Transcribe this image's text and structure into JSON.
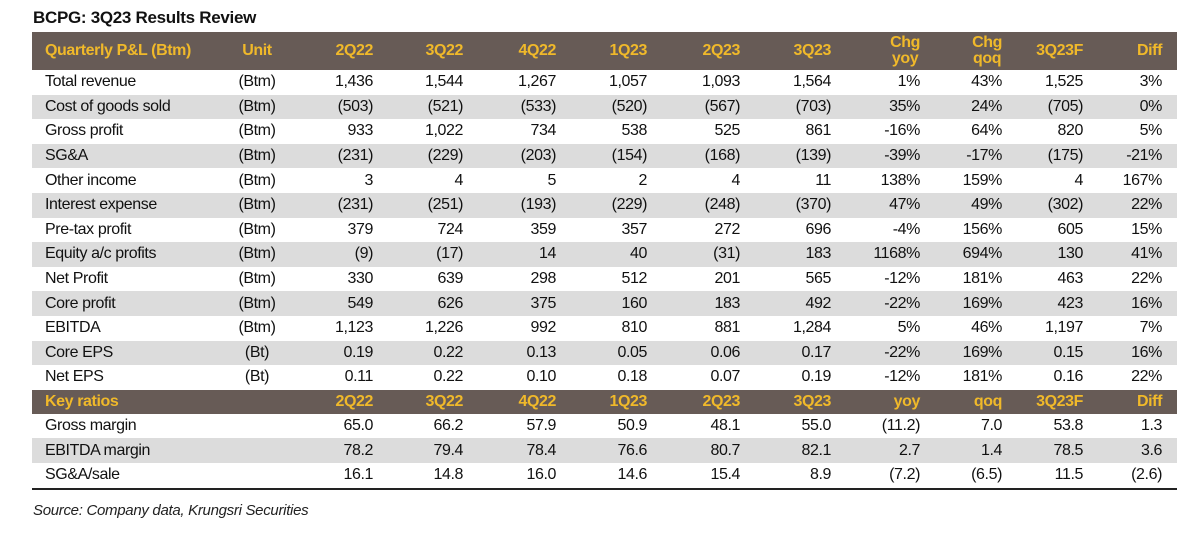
{
  "title": "BCPG: 3Q23 Results Review",
  "colors": {
    "header_bg": "#675b56",
    "header_text": "#f0b92a",
    "stripe": "#dcdcdc"
  },
  "pl_header": {
    "label": "Quarterly P&L (Btm)",
    "unit": "Unit",
    "columns": [
      "2Q22",
      "3Q22",
      "4Q22",
      "1Q23",
      "2Q23",
      "3Q23"
    ],
    "chg_yoy": [
      "Chg",
      "yoy"
    ],
    "chg_qoq": [
      "Chg",
      "qoq"
    ],
    "forecast": "3Q23F",
    "diff": "Diff"
  },
  "pl_rows": [
    {
      "label": "Total revenue",
      "unit": "(Btm)",
      "values": [
        "1,436",
        "1,544",
        "1,267",
        "1,057",
        "1,093",
        "1,564",
        "1%",
        "43%",
        "1,525",
        "3%"
      ]
    },
    {
      "label": "Cost of goods sold",
      "unit": "(Btm)",
      "values": [
        "(503)",
        "(521)",
        "(533)",
        "(520)",
        "(567)",
        "(703)",
        "35%",
        "24%",
        "(705)",
        "0%"
      ]
    },
    {
      "label": "Gross profit",
      "unit": "(Btm)",
      "values": [
        "933",
        "1,022",
        "734",
        "538",
        "525",
        "861",
        "-16%",
        "64%",
        "820",
        "5%"
      ]
    },
    {
      "label": "SG&A",
      "unit": "(Btm)",
      "values": [
        "(231)",
        "(229)",
        "(203)",
        "(154)",
        "(168)",
        "(139)",
        "-39%",
        "-17%",
        "(175)",
        "-21%"
      ]
    },
    {
      "label": "Other income",
      "unit": "(Btm)",
      "values": [
        "3",
        "4",
        "5",
        "2",
        "4",
        "11",
        "138%",
        "159%",
        "4",
        "167%"
      ]
    },
    {
      "label": "Interest expense",
      "unit": "(Btm)",
      "values": [
        "(231)",
        "(251)",
        "(193)",
        "(229)",
        "(248)",
        "(370)",
        "47%",
        "49%",
        "(302)",
        "22%"
      ]
    },
    {
      "label": "Pre-tax profit",
      "unit": "(Btm)",
      "values": [
        "379",
        "724",
        "359",
        "357",
        "272",
        "696",
        "-4%",
        "156%",
        "605",
        "15%"
      ]
    },
    {
      "label": "Equity a/c profits",
      "unit": "(Btm)",
      "values": [
        "(9)",
        "(17)",
        "14",
        "40",
        "(31)",
        "183",
        "1168%",
        "694%",
        "130",
        "41%"
      ]
    },
    {
      "label": "Net Profit",
      "unit": "(Btm)",
      "values": [
        "330",
        "639",
        "298",
        "512",
        "201",
        "565",
        "-12%",
        "181%",
        "463",
        "22%"
      ]
    },
    {
      "label": "Core profit",
      "unit": "(Btm)",
      "values": [
        "549",
        "626",
        "375",
        "160",
        "183",
        "492",
        "-22%",
        "169%",
        "423",
        "16%"
      ]
    },
    {
      "label": "EBITDA",
      "unit": "(Btm)",
      "values": [
        "1,123",
        "1,226",
        "992",
        "810",
        "881",
        "1,284",
        "5%",
        "46%",
        "1,197",
        "7%"
      ]
    },
    {
      "label": "Core EPS",
      "unit": "(Bt)",
      "values": [
        "0.19",
        "0.22",
        "0.13",
        "0.05",
        "0.06",
        "0.17",
        "-22%",
        "169%",
        "0.15",
        "16%"
      ]
    },
    {
      "label": "Net EPS",
      "unit": "(Bt)",
      "values": [
        "0.11",
        "0.22",
        "0.10",
        "0.18",
        "0.07",
        "0.19",
        "-12%",
        "181%",
        "0.16",
        "22%"
      ]
    }
  ],
  "ratio_header": {
    "label": "Key ratios",
    "columns": [
      "2Q22",
      "3Q22",
      "4Q22",
      "1Q23",
      "2Q23",
      "3Q23",
      "yoy",
      "qoq",
      "3Q23F",
      "Diff"
    ]
  },
  "ratio_rows": [
    {
      "label": "Gross margin",
      "values": [
        "65.0",
        "66.2",
        "57.9",
        "50.9",
        "48.1",
        "55.0",
        "(11.2)",
        "7.0",
        "53.8",
        "1.3"
      ]
    },
    {
      "label": "EBITDA margin",
      "values": [
        "78.2",
        "79.4",
        "78.4",
        "76.6",
        "80.7",
        "82.1",
        "2.7",
        "1.4",
        "78.5",
        "3.6"
      ]
    },
    {
      "label": "SG&A/sale",
      "values": [
        "16.1",
        "14.8",
        "16.0",
        "14.6",
        "15.4",
        "8.9",
        "(7.2)",
        "(6.5)",
        "11.5",
        "(2.6)"
      ]
    }
  ],
  "source": "Source: Company data, Krungsri Securities"
}
